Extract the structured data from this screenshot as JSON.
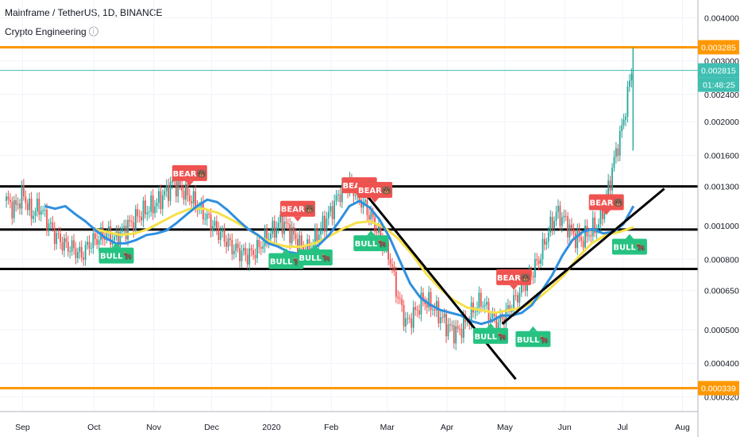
{
  "header": {
    "symbol_line": "Mainframe / TetherUS, 1D, BINANCE",
    "indicator_line": "Crypto Engineering ⓘ"
  },
  "colors": {
    "bull": "#26c281",
    "bear": "#ef5350",
    "ma_fast": "#2f8fdf",
    "ma_slow": "#f5e04a",
    "level_orange": "#ff9800",
    "last_price": "#3fbfb2",
    "candle_up": "#26a69a",
    "candle_down": "#ef5350"
  },
  "price_tags": {
    "top_level": "0.003285",
    "last_price": "0.002815",
    "countdown": "01:48:25",
    "bottom_level": "0.000339"
  },
  "chart_data": {
    "type": "candlestick",
    "log_scale": true,
    "ylim": [
      0.00029,
      0.0045
    ],
    "y_ticks": [
      "0.004000",
      "0.003000",
      "0.002400",
      "0.002000",
      "0.001600",
      "0.001300",
      "0.001000",
      "0.000800",
      "0.000650",
      "0.000500",
      "0.000400",
      "0.000320"
    ],
    "x_ticks": [
      "Sep",
      "Oct",
      "Nov",
      "Dec",
      "2020",
      "Feb",
      "Mar",
      "Apr",
      "May",
      "Jun",
      "Jul",
      "Aug"
    ],
    "horizontal_levels": [
      {
        "price": 0.003285,
        "color": "orange"
      },
      {
        "price": 0.000339,
        "color": "orange"
      },
      {
        "price": 0.0013,
        "color": "black"
      },
      {
        "price": 0.000975,
        "color": "black"
      },
      {
        "price": 0.00075,
        "color": "black"
      }
    ],
    "last_price": 0.002815,
    "close_series": [
      0.00118,
      0.00112,
      0.00124,
      0.00108,
      0.00114,
      0.00102,
      0.00093,
      0.00088,
      0.00086,
      0.00082,
      0.00089,
      0.00092,
      0.00095,
      0.00091,
      0.00097,
      0.00102,
      0.00108,
      0.00112,
      0.00116,
      0.00124,
      0.00133,
      0.00128,
      0.00121,
      0.00114,
      0.00106,
      0.00099,
      0.00093,
      0.00087,
      0.00084,
      0.00082,
      0.00085,
      0.00091,
      0.00097,
      0.00103,
      0.00097,
      0.00089,
      0.00084,
      0.00091,
      0.00101,
      0.00111,
      0.00125,
      0.00132,
      0.00124,
      0.00114,
      0.00103,
      0.00091,
      0.00081,
      0.00062,
      0.00052,
      0.00056,
      0.00061,
      0.00059,
      0.00055,
      0.00051,
      0.00049,
      0.00052,
      0.00057,
      0.00061,
      0.00055,
      0.00052,
      0.00056,
      0.00061,
      0.00067,
      0.00073,
      0.00081,
      0.00096,
      0.00109,
      0.00104,
      0.00094,
      0.00091,
      0.00096,
      0.00101,
      0.00121,
      0.00158,
      0.00198,
      0.00282
    ],
    "ma_fast": [
      0.00114,
      0.00112,
      0.00114,
      0.00108,
      0.00103,
      0.00097,
      0.00092,
      0.00089,
      0.00089,
      0.00091,
      0.00094,
      0.00095,
      0.00097,
      0.00102,
      0.00108,
      0.00114,
      0.00119,
      0.00117,
      0.00111,
      0.00104,
      0.00098,
      0.00094,
      0.00089,
      0.00087,
      0.00084,
      0.00083,
      0.00084,
      0.00088,
      0.00094,
      0.00103,
      0.00114,
      0.00118,
      0.00113,
      0.00104,
      0.00092,
      0.00079,
      0.00068,
      0.00062,
      0.00059,
      0.00057,
      0.00056,
      0.00055,
      0.00053,
      0.00052,
      0.00053,
      0.00055,
      0.00055,
      0.00056,
      0.00059,
      0.00065,
      0.00072,
      0.00082,
      0.00091,
      0.00096,
      0.00098,
      0.00095,
      0.00096,
      0.00101,
      0.00114
    ],
    "ma_slow": [
      0.00098,
      0.00096,
      0.00094,
      0.00095,
      0.00098,
      0.00103,
      0.00108,
      0.00112,
      0.00112,
      0.00109,
      0.00104,
      0.00099,
      0.00093,
      0.00089,
      0.00087,
      0.00087,
      0.00089,
      0.00093,
      0.00098,
      0.00102,
      0.00103,
      0.00099,
      0.00092,
      0.00083,
      0.00073,
      0.00066,
      0.00061,
      0.00058,
      0.00057,
      0.00056,
      0.00057,
      0.00058,
      0.00061,
      0.00066,
      0.00072,
      0.00081,
      0.00089,
      0.00094,
      0.00096,
      0.00099
    ],
    "signals": [
      {
        "label": "BEAR🐻",
        "kind": "bear",
        "date": "Nov 28",
        "price": 0.00142
      },
      {
        "label": "BEAR🐻",
        "kind": "bear",
        "date": "Jan 23",
        "price": 0.00112
      },
      {
        "label": "BEAR🐻",
        "kind": "bear",
        "date": "Feb 24",
        "price": 0.00131
      },
      {
        "label": "BEAR🐻",
        "kind": "bear",
        "date": "Mar 3",
        "price": 0.00127
      },
      {
        "label": "BEAR🐻",
        "kind": "bear",
        "date": "May 14",
        "price": 0.00071
      },
      {
        "label": "BEAR🐻",
        "kind": "bear",
        "date": "Jul 1",
        "price": 0.00117
      },
      {
        "label": "BULL🐂",
        "kind": "bull",
        "date": "Oct 21",
        "price": 0.00082
      },
      {
        "label": "BULL🐂",
        "kind": "bull",
        "date": "Jan 17",
        "price": 0.00079
      },
      {
        "label": "BULL🐂",
        "kind": "bull",
        "date": "Feb 1",
        "price": 0.00081
      },
      {
        "label": "BULL🐂",
        "kind": "bull",
        "date": "Mar 1",
        "price": 0.00089
      },
      {
        "label": "BULL🐂",
        "kind": "bull",
        "date": "May 2",
        "price": 0.00048
      },
      {
        "label": "BULL🐂",
        "kind": "bull",
        "date": "May 24",
        "price": 0.00047
      },
      {
        "label": "BULL🐂",
        "kind": "bull",
        "date": "Jul 13",
        "price": 0.00087
      }
    ],
    "trendlines": [
      {
        "from": {
          "date": "Feb 25",
          "price": 0.00128
        },
        "to": {
          "date": "May 15",
          "price": 0.00036
        }
      },
      {
        "from": {
          "date": "May 8",
          "price": 0.00052
        },
        "to": {
          "date": "Jul 31",
          "price": 0.00128
        }
      }
    ]
  }
}
